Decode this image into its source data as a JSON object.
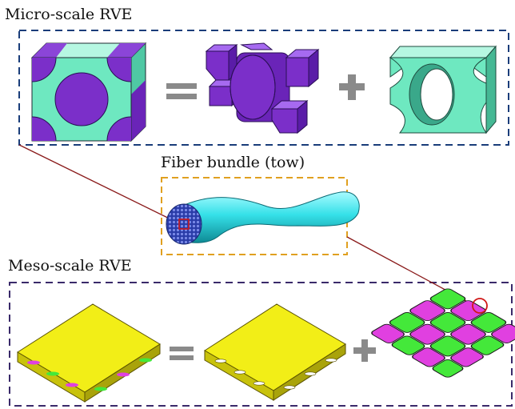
{
  "diagram": {
    "micro_title": "Micro-scale RVE",
    "tow_title": "Fiber bundle (tow)",
    "meso_title": "Meso-scale RVE",
    "operators": {
      "equals": "=",
      "plus": "+"
    }
  },
  "colors": {
    "fiber_purple": "#7b2fc9",
    "matrix_teal": "#6ee8c0",
    "tow_cyan": "#35e0e8",
    "lamina_yellow": "#f2ee17",
    "warp_green": "#44e83a",
    "weft_magenta": "#e040e0",
    "micro_frame": "#1a3d7a",
    "tow_frame": "#e0a020",
    "meso_frame": "#3a2a6a",
    "link_line": "#8a1a1a"
  }
}
